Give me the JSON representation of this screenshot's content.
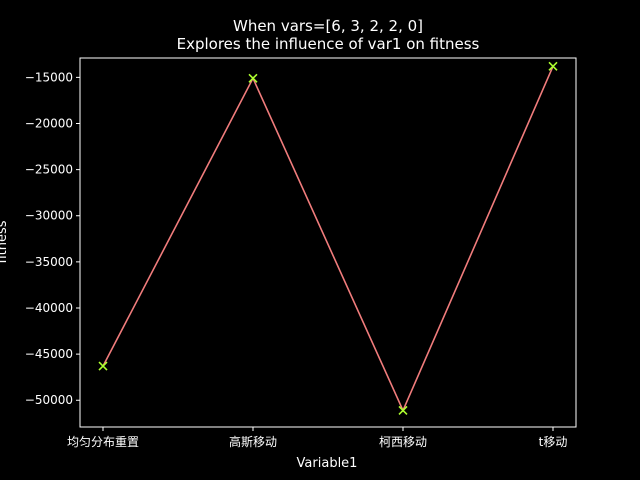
{
  "chart_data": {
    "type": "line",
    "title": "When vars=[6, 3, 2, 2, 0]",
    "subtitle": "Explores the influence of var1 on fitness",
    "xlabel": "Variable1",
    "ylabel": "fitness",
    "categories": [
      "均匀分布重置",
      "高斯移动",
      "柯西移动",
      "t移动"
    ],
    "series": [
      {
        "values": [
          -46300,
          -15100,
          -51100,
          -13800
        ]
      }
    ],
    "ylim": [
      -52900,
      -12900
    ],
    "yticks": [
      -50000,
      -45000,
      -40000,
      -35000,
      -30000,
      -25000,
      -20000,
      -15000
    ],
    "ytick_labels": [
      "−50000",
      "−45000",
      "−40000",
      "−35000",
      "−30000",
      "−25000",
      "−20000",
      "−15000"
    ],
    "grid": false,
    "legend": "none",
    "colors": {
      "background": "#000000",
      "axes": "#ffffff",
      "line": "#f07c7c",
      "marker": "#adff2f",
      "text": "#ffffff"
    }
  }
}
